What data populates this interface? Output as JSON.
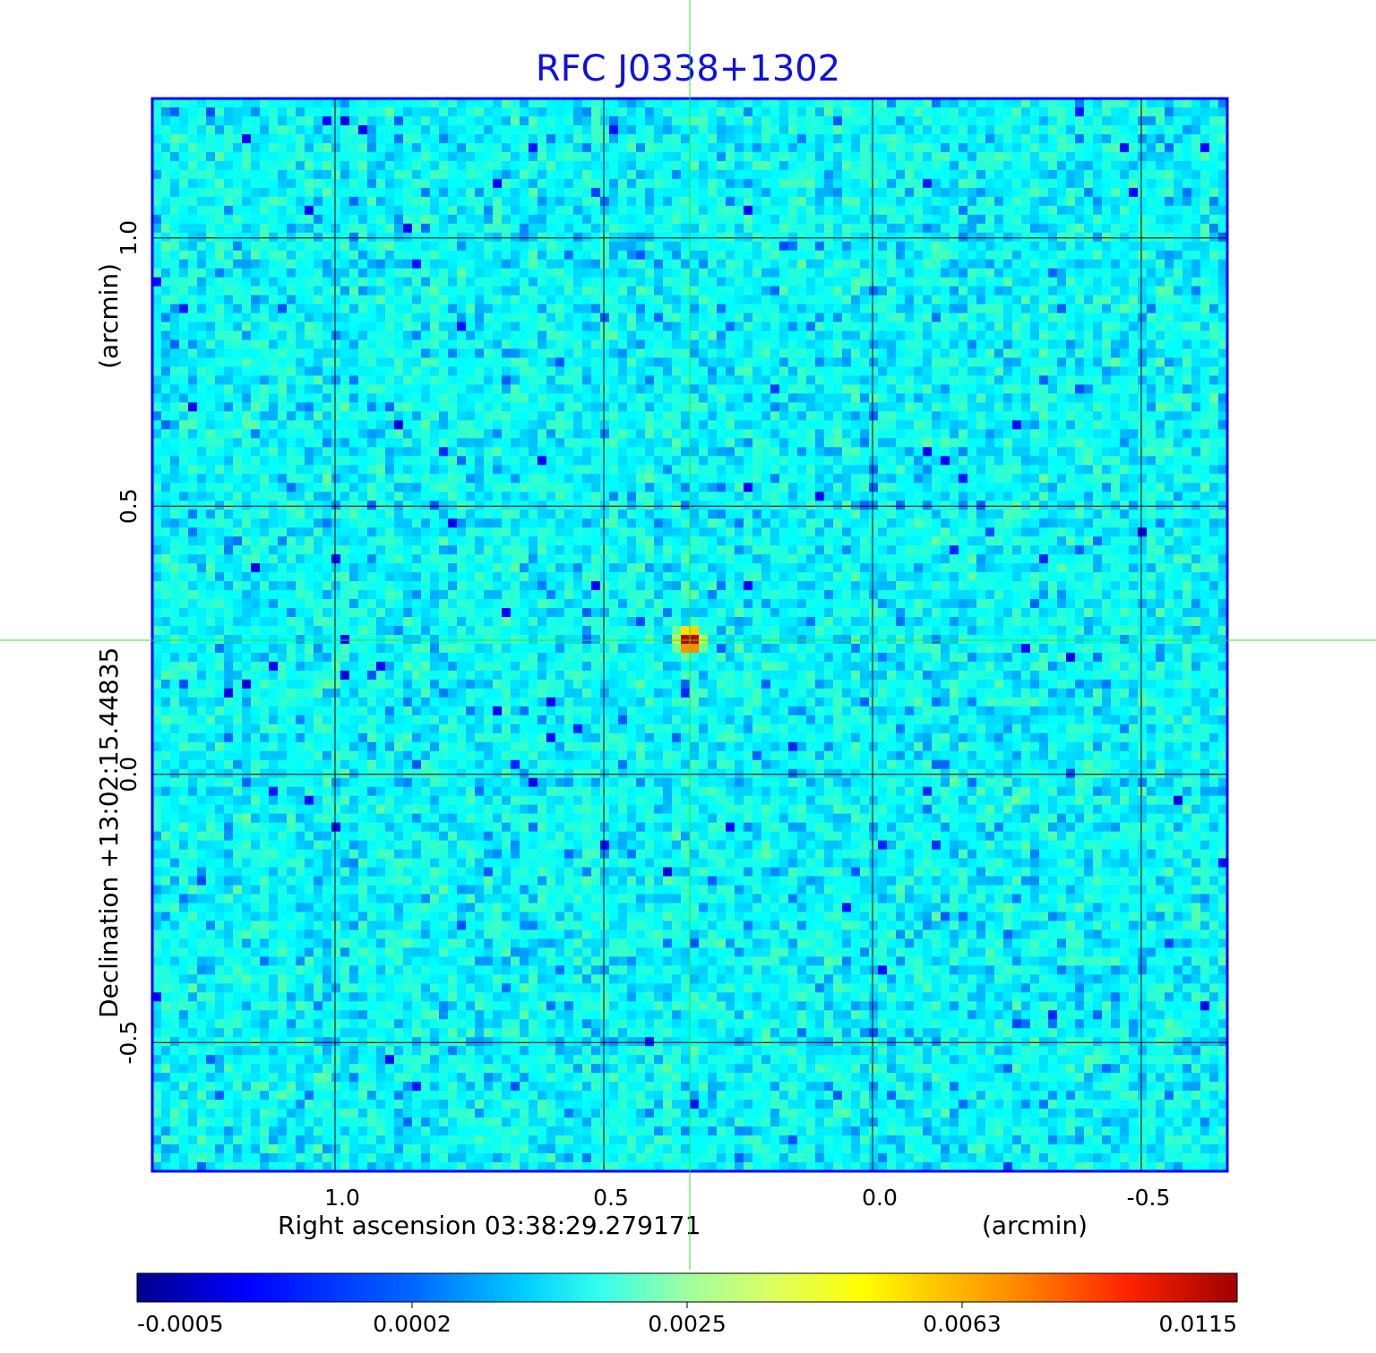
{
  "chart_data": {
    "type": "heatmap",
    "title": "RFC J0338+1302",
    "xlabel": "Right ascension  03:38:29.279171",
    "xunit": "(arcmin)",
    "ylabel": "Declination  +13:02:15.44835",
    "yunit": "(arcmin)",
    "xlim": [
      1.34,
      -0.66
    ],
    "ylim": [
      -0.74,
      1.26
    ],
    "x_ticks": [
      1.0,
      0.5,
      0.0,
      -0.5
    ],
    "x_tick_labels": [
      "1.0",
      "0.5",
      "0.0",
      "-0.5"
    ],
    "y_ticks": [
      1.0,
      0.5,
      0.0,
      -0.5
    ],
    "y_tick_labels": [
      "1.0",
      "0.5",
      "0.0",
      "-0.5"
    ],
    "grid": true,
    "crosshair": {
      "ra_offset_arcmin": 0.34,
      "dec_offset_arcmin": 0.25
    },
    "source": {
      "ra_offset_arcmin": 0.34,
      "dec_offset_arcmin": 0.25,
      "peak": 0.0115
    },
    "background_level": 0.0002,
    "colorscale": "jet",
    "colorbar": {
      "ticks": [
        "-0.0005",
        "0.0002",
        "0.0025",
        "0.0063",
        "0.0115"
      ],
      "min": -0.0005,
      "max": 0.0115
    },
    "colors": {
      "title": "#1010e0",
      "grid": "#000000",
      "crosshair": "#30e030",
      "frame": "#0000ff"
    }
  }
}
